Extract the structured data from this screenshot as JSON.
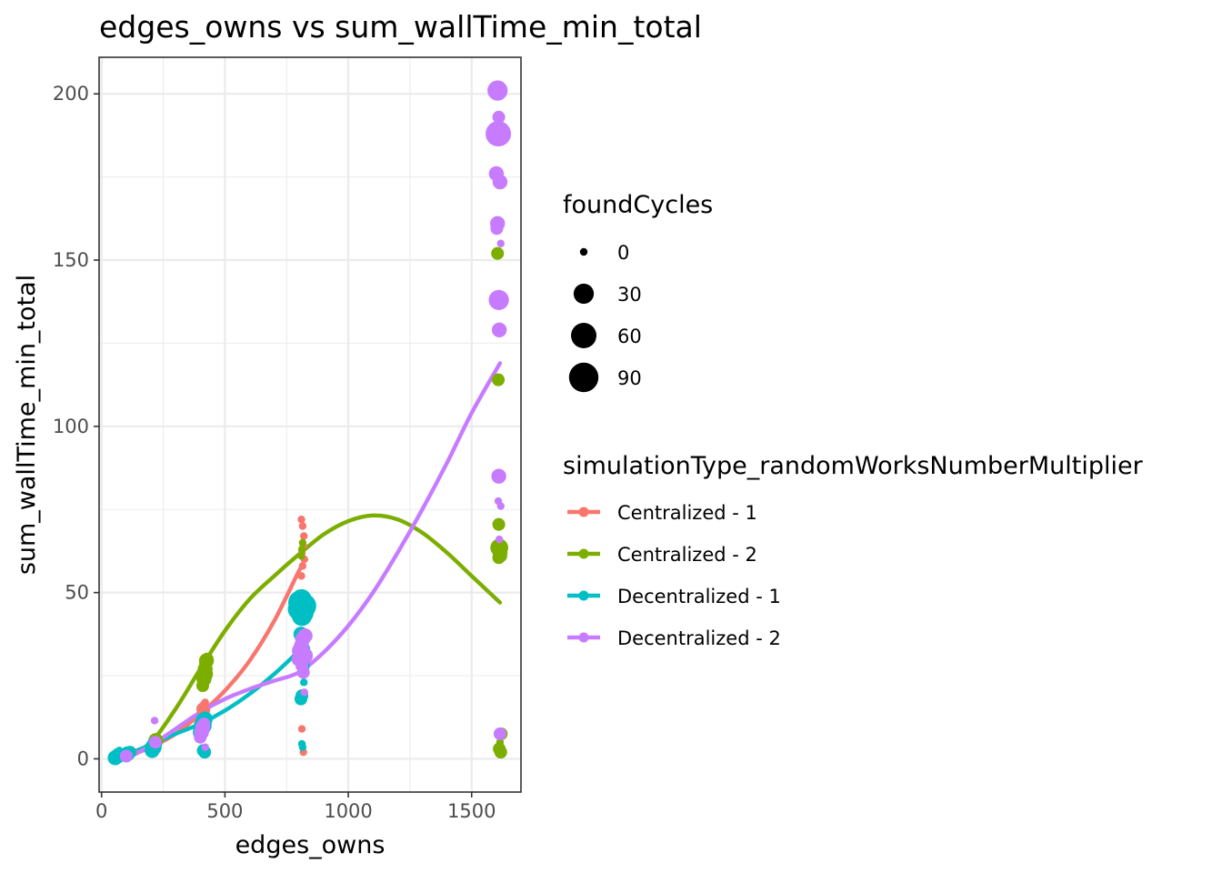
{
  "chart_data": {
    "type": "scatter",
    "title": "edges_owns  vs  sum_wallTime_min_total",
    "xlabel": "edges_owns",
    "ylabel": "sum_wallTime_min_total",
    "xlim": [
      -10,
      1700
    ],
    "ylim": [
      -10,
      211
    ],
    "x_ticks": [
      0,
      500,
      1000,
      1500
    ],
    "y_ticks": [
      0,
      50,
      100,
      150,
      200
    ],
    "grid": true,
    "size_legend": {
      "title": "foundCycles",
      "entries": [
        {
          "label": "0",
          "value": 0
        },
        {
          "label": "30",
          "value": 30
        },
        {
          "label": "60",
          "value": 60
        },
        {
          "label": "90",
          "value": 90
        }
      ]
    },
    "color_legend": {
      "title": "simulationType_randomWorksNumberMultiplier",
      "placement": "right"
    },
    "series": [
      {
        "name": "Centralized - 1",
        "color": "#F8766D",
        "points": [
          [
            60,
            0.3,
            0
          ],
          [
            65,
            0.8,
            0
          ],
          [
            70,
            1.2,
            0
          ],
          [
            110,
            1.0,
            0
          ],
          [
            120,
            1.5,
            0
          ],
          [
            130,
            2.0,
            0
          ],
          [
            210,
            3.5,
            0
          ],
          [
            215,
            5.0,
            0
          ],
          [
            220,
            4.2,
            0
          ],
          [
            405,
            13.0,
            0
          ],
          [
            410,
            15.0,
            5
          ],
          [
            415,
            16.5,
            0
          ],
          [
            420,
            17.0,
            0
          ],
          [
            425,
            14.5,
            0
          ],
          [
            810,
            72.0,
            0
          ],
          [
            815,
            70.0,
            0
          ],
          [
            820,
            67.0,
            0
          ],
          [
            818,
            64.0,
            0
          ],
          [
            812,
            62.0,
            0
          ],
          [
            822,
            60.0,
            0
          ],
          [
            815,
            58.0,
            0
          ],
          [
            810,
            55.0,
            0
          ],
          [
            812,
            9.0,
            0
          ],
          [
            818,
            2.0,
            0
          ]
        ],
        "smooth": [
          [
            100,
            0.5
          ],
          [
            200,
            3.5
          ],
          [
            300,
            7.5
          ],
          [
            400,
            13.5
          ],
          [
            500,
            20.5
          ],
          [
            600,
            29.5
          ],
          [
            700,
            41.5
          ],
          [
            800,
            56.5
          ],
          [
            815,
            58
          ]
        ]
      },
      {
        "name": "Centralized - 2",
        "color": "#7CAE00",
        "points": [
          [
            65,
            0.5,
            0
          ],
          [
            70,
            1.0,
            0
          ],
          [
            75,
            1.5,
            0
          ],
          [
            215,
            4.0,
            0
          ],
          [
            220,
            5.5,
            10
          ],
          [
            410,
            22.0,
            5
          ],
          [
            415,
            24.0,
            10
          ],
          [
            418,
            25.5,
            15
          ],
          [
            420,
            27.0,
            10
          ],
          [
            422,
            28.5,
            5
          ],
          [
            425,
            29.5,
            10
          ],
          [
            428,
            30.0,
            5
          ],
          [
            810,
            61.0,
            0
          ],
          [
            812,
            63.0,
            0
          ],
          [
            815,
            65.0,
            0
          ],
          [
            1605,
            152.0,
            5
          ],
          [
            1608,
            114.0,
            5
          ],
          [
            1610,
            70.5,
            5
          ],
          [
            1612,
            63.5,
            20
          ],
          [
            1615,
            62.0,
            10
          ],
          [
            1610,
            60.5,
            5
          ],
          [
            1618,
            61.0,
            5
          ],
          [
            1620,
            7.5,
            5
          ],
          [
            1615,
            5.0,
            0
          ],
          [
            1612,
            3.0,
            5
          ],
          [
            1618,
            2.0,
            5
          ]
        ],
        "smooth": [
          [
            100,
            0.5
          ],
          [
            200,
            5
          ],
          [
            300,
            15
          ],
          [
            400,
            27
          ],
          [
            500,
            38.5
          ],
          [
            600,
            48
          ],
          [
            700,
            55
          ],
          [
            800,
            61.5
          ],
          [
            900,
            67.5
          ],
          [
            1000,
            71.5
          ],
          [
            1100,
            73.2
          ],
          [
            1200,
            72
          ],
          [
            1300,
            68
          ],
          [
            1400,
            62
          ],
          [
            1500,
            55
          ],
          [
            1615,
            47
          ]
        ]
      },
      {
        "name": "Decentralized - 1",
        "color": "#00BFC4",
        "points": [
          [
            55,
            0.3,
            10
          ],
          [
            60,
            0.5,
            5
          ],
          [
            65,
            0.8,
            10
          ],
          [
            70,
            1.5,
            5
          ],
          [
            72,
            2.5,
            0
          ],
          [
            100,
            1.0,
            5
          ],
          [
            105,
            1.5,
            10
          ],
          [
            110,
            2.5,
            0
          ],
          [
            115,
            2.0,
            5
          ],
          [
            205,
            2.5,
            10
          ],
          [
            210,
            3.5,
            15
          ],
          [
            215,
            4.5,
            10
          ],
          [
            400,
            8.0,
            10
          ],
          [
            405,
            9.0,
            15
          ],
          [
            410,
            10.0,
            20
          ],
          [
            415,
            11.5,
            15
          ],
          [
            420,
            12.0,
            10
          ],
          [
            412,
            2.5,
            5
          ],
          [
            418,
            2.0,
            5
          ],
          [
            800,
            45.0,
            40
          ],
          [
            805,
            47.0,
            50
          ],
          [
            810,
            48.0,
            30
          ],
          [
            815,
            44.0,
            40
          ],
          [
            820,
            46.0,
            55
          ],
          [
            812,
            43.0,
            30
          ],
          [
            808,
            37.5,
            10
          ],
          [
            815,
            33.0,
            10
          ],
          [
            818,
            28.0,
            5
          ],
          [
            820,
            23.0,
            0
          ],
          [
            812,
            19.0,
            5
          ],
          [
            808,
            18.0,
            5
          ],
          [
            812,
            4.5,
            0
          ],
          [
            815,
            3.5,
            0
          ]
        ],
        "smooth": [
          [
            60,
            0.3
          ],
          [
            100,
            1.3
          ],
          [
            200,
            4.2
          ],
          [
            300,
            7.5
          ],
          [
            400,
            10.5
          ],
          [
            500,
            14.5
          ],
          [
            600,
            19.5
          ],
          [
            700,
            25.5
          ],
          [
            800,
            32.5
          ],
          [
            815,
            34
          ]
        ]
      },
      {
        "name": "Decentralized - 2",
        "color": "#C77CFF",
        "points": [
          [
            90,
            0.5,
            0
          ],
          [
            100,
            0.8,
            5
          ],
          [
            110,
            1.2,
            0
          ],
          [
            215,
            11.5,
            0
          ],
          [
            218,
            5.0,
            5
          ],
          [
            400,
            6.5,
            5
          ],
          [
            405,
            8.0,
            10
          ],
          [
            410,
            9.5,
            10
          ],
          [
            415,
            10.5,
            5
          ],
          [
            420,
            3.5,
            0
          ],
          [
            800,
            30.0,
            10
          ],
          [
            805,
            32.5,
            15
          ],
          [
            810,
            34.0,
            10
          ],
          [
            815,
            36.0,
            10
          ],
          [
            820,
            31.0,
            20
          ],
          [
            825,
            37.0,
            10
          ],
          [
            812,
            28.0,
            5
          ],
          [
            818,
            26.0,
            5
          ],
          [
            822,
            20.0,
            0
          ],
          [
            1605,
            201.0,
            30
          ],
          [
            1608,
            188.0,
            60
          ],
          [
            1610,
            193.0,
            5
          ],
          [
            1612,
            190.0,
            5
          ],
          [
            1600,
            176.0,
            10
          ],
          [
            1615,
            173.5,
            10
          ],
          [
            1605,
            161.0,
            10
          ],
          [
            1602,
            159.5,
            5
          ],
          [
            1618,
            155.0,
            0
          ],
          [
            1610,
            138.0,
            30
          ],
          [
            1612,
            129.0,
            10
          ],
          [
            1610,
            85.0,
            10
          ],
          [
            1608,
            77.5,
            0
          ],
          [
            1618,
            76.0,
            0
          ],
          [
            1612,
            66.0,
            0
          ],
          [
            1615,
            7.5,
            5
          ]
        ],
        "smooth": [
          [
            110,
            0.4
          ],
          [
            200,
            4
          ],
          [
            300,
            9
          ],
          [
            400,
            14
          ],
          [
            500,
            18
          ],
          [
            600,
            21
          ],
          [
            700,
            23.5
          ],
          [
            800,
            26
          ],
          [
            900,
            32
          ],
          [
            1000,
            40
          ],
          [
            1100,
            50
          ],
          [
            1200,
            62
          ],
          [
            1300,
            75
          ],
          [
            1400,
            89
          ],
          [
            1500,
            104
          ],
          [
            1615,
            119
          ]
        ]
      }
    ]
  }
}
